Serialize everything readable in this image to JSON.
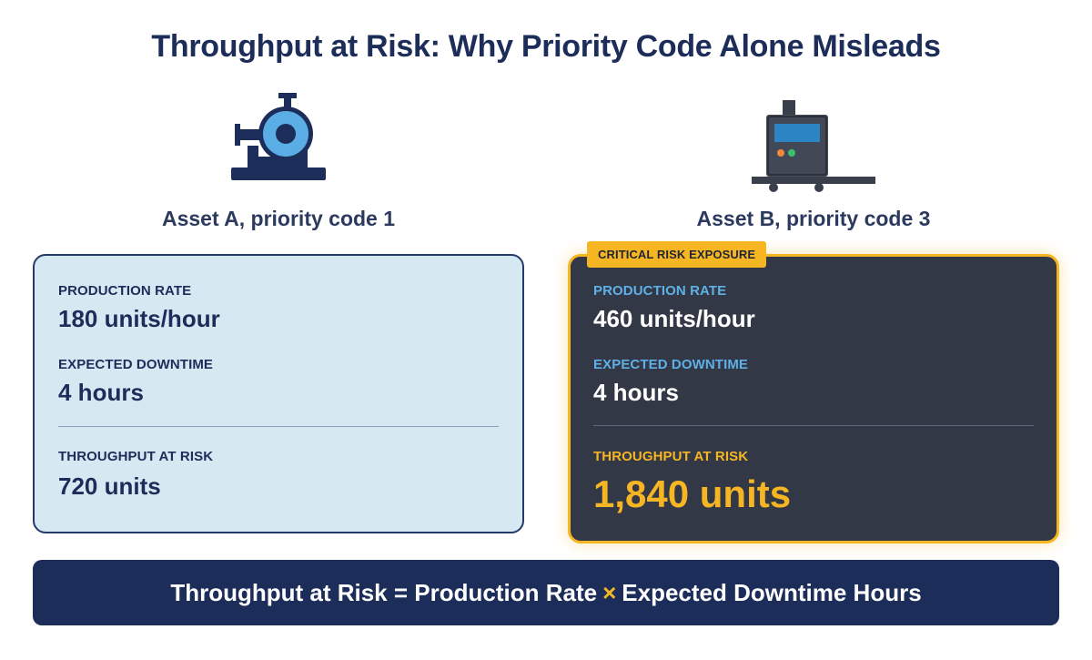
{
  "title": "Throughput at Risk: Why Priority Code Alone Misleads",
  "assets": {
    "a": {
      "icon": "pump-icon",
      "label": "Asset A, priority code 1",
      "production_rate_label": "PRODUCTION RATE",
      "production_rate_value": "180 units/hour",
      "downtime_label": "EXPECTED DOWNTIME",
      "downtime_value": "4 hours",
      "risk_label": "THROUGHPUT AT RISK",
      "risk_value": "720 units"
    },
    "b": {
      "icon": "conveyor-machine-icon",
      "label": "Asset B, priority code 3",
      "badge": "CRITICAL RISK EXPOSURE",
      "production_rate_label": "PRODUCTION RATE",
      "production_rate_value": "460 units/hour",
      "downtime_label": "EXPECTED DOWNTIME",
      "downtime_value": "4 hours",
      "risk_label": "THROUGHPUT AT RISK",
      "risk_value": "1,840 units"
    }
  },
  "formula": {
    "left": "Throughput at Risk = Production Rate",
    "operator": "×",
    "right": "Expected Downtime Hours"
  },
  "colors": {
    "navy": "#1c2d5a",
    "light_card": "#d6e8f2",
    "dark_card": "#333846",
    "accent": "#f6b623",
    "label_blue": "#5fb0e6"
  }
}
